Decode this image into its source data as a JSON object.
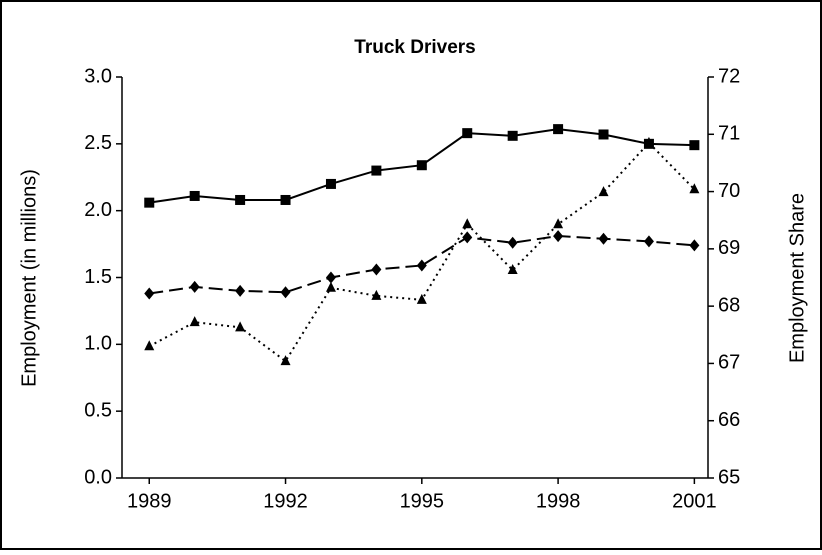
{
  "chart_data": {
    "type": "line",
    "title": "Truck Drivers",
    "y_label": "Employment (in millions)",
    "y2_label": "Employment Share",
    "x": [
      1989,
      1990,
      1991,
      1992,
      1993,
      1994,
      1995,
      1996,
      1997,
      1998,
      1999,
      2000,
      2001
    ],
    "xlim": [
      1988.4,
      2001.3
    ],
    "xticks": [
      1989,
      1992,
      1995,
      1998,
      2001
    ],
    "ylim": [
      0,
      3
    ],
    "yticks": [
      {
        "value": 0,
        "label": "0.0"
      },
      0.5,
      {
        "value": 1,
        "label": "1.0"
      },
      1.5,
      {
        "value": 2,
        "label": "2.0"
      },
      2.5,
      {
        "value": 3,
        "label": "3.0"
      }
    ],
    "y2lim": [
      65,
      72
    ],
    "y2ticks": [
      65,
      66,
      67,
      68,
      69,
      70,
      71,
      72
    ],
    "grid": false,
    "series": [
      {
        "color": "#000000",
        "line_style": "solid",
        "marker": "square",
        "values": [
          2.06,
          2.11,
          2.08,
          2.08,
          2.2,
          2.3,
          2.34,
          2.58,
          2.56,
          2.61,
          2.57,
          2.5,
          2.49
        ]
      },
      {
        "color": "#000000",
        "line_style": "dashed",
        "marker": "diamond",
        "values": [
          1.38,
          1.43,
          1.4,
          1.39,
          1.5,
          1.56,
          1.59,
          1.8,
          1.76,
          1.81,
          1.79,
          1.77,
          1.74
        ]
      },
      {
        "color": "#000000",
        "line_style": "dotted",
        "marker": "triangle",
        "axis": "y2",
        "values": [
          67.3,
          67.72,
          67.63,
          67.04,
          68.32,
          68.18,
          68.11,
          69.43,
          68.63,
          69.43,
          69.99,
          70.85,
          70.04
        ]
      }
    ]
  }
}
